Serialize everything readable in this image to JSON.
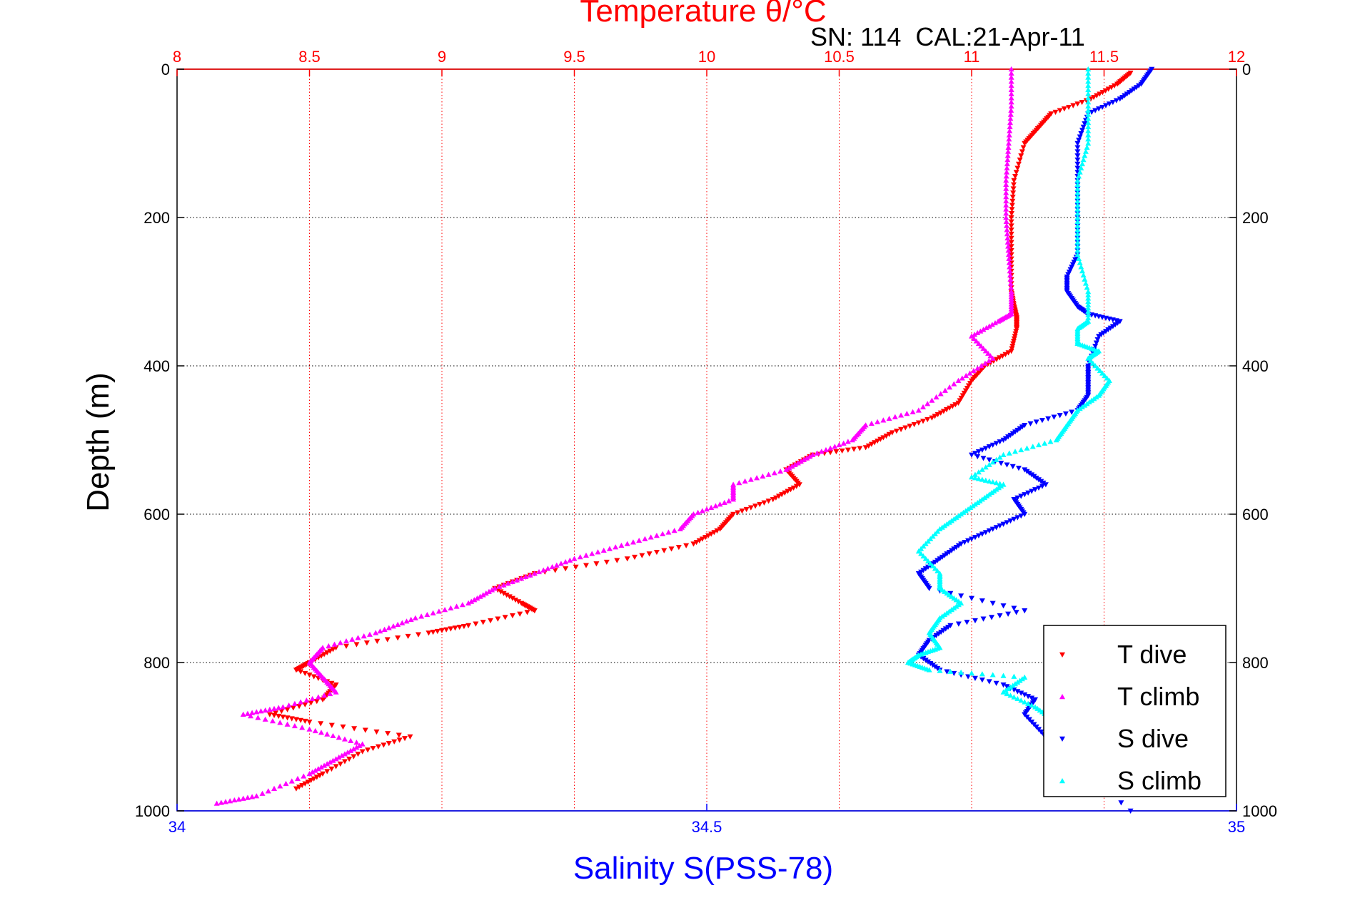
{
  "chart_data": {
    "type": "scatter",
    "title": "Temperature θ/°C",
    "annotation": "SN: 114  CAL:21-Apr-11",
    "xlabel": "Salinity S(PSS-78)",
    "ylabel": "Depth (m)",
    "top_axis": {
      "label": "Temperature θ/°C",
      "range": [
        8,
        12
      ],
      "ticks": [
        "8",
        "8.5",
        "9",
        "9.5",
        "10",
        "10.5",
        "11",
        "11.5",
        "12"
      ],
      "tick_values": [
        8,
        8.5,
        9,
        9.5,
        10,
        10.5,
        11,
        11.5,
        12
      ],
      "color": "#ff0000",
      "grid": true
    },
    "bottom_axis": {
      "label": "Salinity S(PSS-78)",
      "range": [
        34,
        35
      ],
      "ticks": [
        "34",
        "34.5",
        "35"
      ],
      "tick_values": [
        34,
        34.5,
        35
      ],
      "color": "#0000ff"
    },
    "y_axis": {
      "range": [
        0,
        1000
      ],
      "reversed": true,
      "ticks": [
        "0",
        "200",
        "400",
        "600",
        "800",
        "1000"
      ],
      "tick_values": [
        0,
        200,
        400,
        600,
        800,
        1000
      ],
      "grid": true
    },
    "legend": {
      "placement": "bottom-right",
      "entries": [
        "T dive",
        "T climb",
        "S dive",
        "S climb"
      ]
    },
    "series": [
      {
        "name": "T dive",
        "color": "#ff0000",
        "marker": "triangle-down",
        "axis": "temperature",
        "x": [
          11.6,
          11.55,
          11.45,
          11.3,
          11.25,
          11.2,
          11.16,
          11.15,
          11.15,
          11.15,
          11.16,
          11.17,
          11.17,
          11.15,
          11.05,
          11.0,
          10.95,
          10.85,
          10.7,
          10.6,
          10.4,
          10.3,
          10.35,
          10.25,
          10.1,
          10.05,
          9.95,
          9.7,
          9.35,
          9.2,
          9.3,
          9.35,
          9.1,
          8.95,
          8.6,
          8.5,
          8.45,
          8.6,
          8.55,
          8.35,
          8.5,
          8.88,
          8.7,
          8.55,
          8.45
        ],
        "y": [
          5,
          20,
          40,
          60,
          80,
          100,
          150,
          200,
          250,
          300,
          320,
          335,
          350,
          380,
          400,
          420,
          450,
          470,
          490,
          510,
          520,
          540,
          560,
          580,
          600,
          620,
          640,
          660,
          680,
          700,
          720,
          730,
          750,
          760,
          780,
          800,
          810,
          830,
          850,
          870,
          880,
          900,
          920,
          950,
          970
        ]
      },
      {
        "name": "T climb",
        "color": "#ff00ff",
        "marker": "triangle-up",
        "axis": "temperature",
        "x": [
          11.15,
          11.15,
          11.14,
          11.13,
          11.13,
          11.14,
          11.15,
          11.15,
          11.1,
          11.0,
          11.08,
          10.95,
          10.8,
          10.6,
          10.55,
          10.4,
          10.3,
          10.1,
          10.1,
          9.95,
          9.9,
          9.7,
          9.5,
          9.35,
          9.2,
          9.1,
          8.9,
          8.75,
          8.55,
          8.5,
          8.55,
          8.6,
          8.4,
          8.25,
          8.5,
          8.7,
          8.6,
          8.5,
          8.3,
          8.15
        ],
        "y": [
          0,
          50,
          100,
          150,
          200,
          250,
          300,
          330,
          340,
          360,
          390,
          420,
          460,
          480,
          500,
          520,
          540,
          560,
          580,
          600,
          620,
          640,
          660,
          680,
          700,
          720,
          740,
          760,
          780,
          800,
          820,
          840,
          860,
          870,
          890,
          910,
          930,
          950,
          980,
          990
        ]
      },
      {
        "name": "S dive",
        "color": "#0000ff",
        "marker": "triangle-down",
        "axis": "salinity",
        "x": [
          34.92,
          34.91,
          34.89,
          34.86,
          34.85,
          34.85,
          34.85,
          34.85,
          34.84,
          34.84,
          34.85,
          34.86,
          34.89,
          34.87,
          34.86,
          34.86,
          34.86,
          34.85,
          34.8,
          34.78,
          34.75,
          34.8,
          34.82,
          34.79,
          34.8,
          34.77,
          34.74,
          34.72,
          34.7,
          34.71,
          34.8,
          34.73,
          34.71,
          34.7,
          34.72,
          34.78,
          34.81,
          34.8,
          34.82,
          34.9
        ],
        "y": [
          0,
          20,
          40,
          60,
          100,
          150,
          200,
          250,
          280,
          300,
          320,
          330,
          340,
          360,
          400,
          420,
          440,
          460,
          480,
          500,
          520,
          540,
          560,
          580,
          600,
          620,
          640,
          660,
          680,
          700,
          730,
          750,
          770,
          790,
          810,
          830,
          850,
          870,
          900,
          1000
        ]
      },
      {
        "name": "S climb",
        "color": "#00ffff",
        "marker": "triangle-up",
        "axis": "salinity",
        "x": [
          34.86,
          34.86,
          34.86,
          34.85,
          34.85,
          34.85,
          34.86,
          34.86,
          34.85,
          34.85,
          34.87,
          34.86,
          34.88,
          34.87,
          34.85,
          34.84,
          34.83,
          34.78,
          34.75,
          34.78,
          34.76,
          34.74,
          34.72,
          34.7,
          34.72,
          34.72,
          34.74,
          34.72,
          34.71,
          34.72,
          34.7,
          34.69,
          34.71,
          34.8,
          34.78,
          34.81,
          34.83,
          34.86
        ],
        "y": [
          0,
          50,
          100,
          150,
          200,
          250,
          300,
          340,
          350,
          370,
          380,
          390,
          420,
          440,
          460,
          480,
          500,
          520,
          550,
          560,
          580,
          600,
          620,
          650,
          680,
          700,
          720,
          740,
          760,
          780,
          790,
          800,
          810,
          820,
          840,
          860,
          880,
          900
        ]
      }
    ]
  }
}
